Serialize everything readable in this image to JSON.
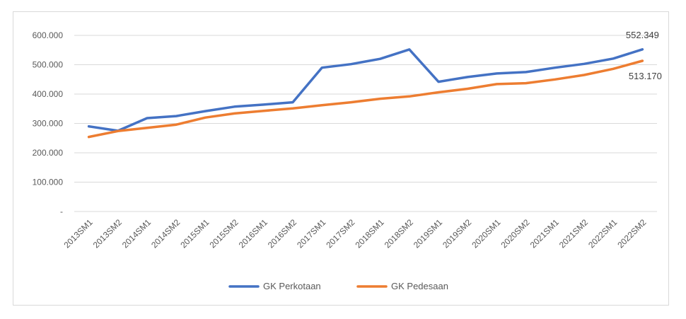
{
  "chart_data": {
    "type": "line",
    "title": "",
    "xlabel": "",
    "ylabel": "",
    "ylim": [
      0,
      600000
    ],
    "y_ticks": [
      {
        "value": 0,
        "label": "-"
      },
      {
        "value": 100000,
        "label": "100.000"
      },
      {
        "value": 200000,
        "label": "200.000"
      },
      {
        "value": 300000,
        "label": "300.000"
      },
      {
        "value": 400000,
        "label": "400.000"
      },
      {
        "value": 500000,
        "label": "500.000"
      },
      {
        "value": 600000,
        "label": "600.000"
      }
    ],
    "grid": true,
    "legend_position": "bottom",
    "categories": [
      "2013SM1",
      "2013SM2",
      "2014SM1",
      "2014SM2",
      "2015SM1",
      "2015SM2",
      "2016SM1",
      "2016SM2",
      "2017SM1",
      "2017SM2",
      "2018SM1",
      "2018SM2",
      "2019SM1",
      "2019SM2",
      "2020SM1",
      "2020SM2",
      "2021SM1",
      "2021SM2",
      "2022SM1",
      "2022SM2"
    ],
    "series": [
      {
        "name": "GK Perkotaan",
        "color": "#4472c4",
        "values": [
          290000,
          275000,
          318000,
          325000,
          342000,
          357000,
          364000,
          372000,
          490000,
          502000,
          520000,
          552000,
          442000,
          458000,
          470000,
          475000,
          490000,
          503000,
          521000,
          552349
        ]
      },
      {
        "name": "GK Pedesaan",
        "color": "#ed7d31",
        "values": [
          254000,
          274000,
          285000,
          296000,
          320000,
          334000,
          343000,
          351000,
          362000,
          372000,
          384000,
          392000,
          406000,
          418000,
          434000,
          437000,
          450000,
          465000,
          486000,
          513170
        ]
      }
    ],
    "annotations": [
      {
        "series": 0,
        "index": 19,
        "text": "552.349"
      },
      {
        "series": 1,
        "index": 19,
        "text": "513.170"
      }
    ]
  }
}
